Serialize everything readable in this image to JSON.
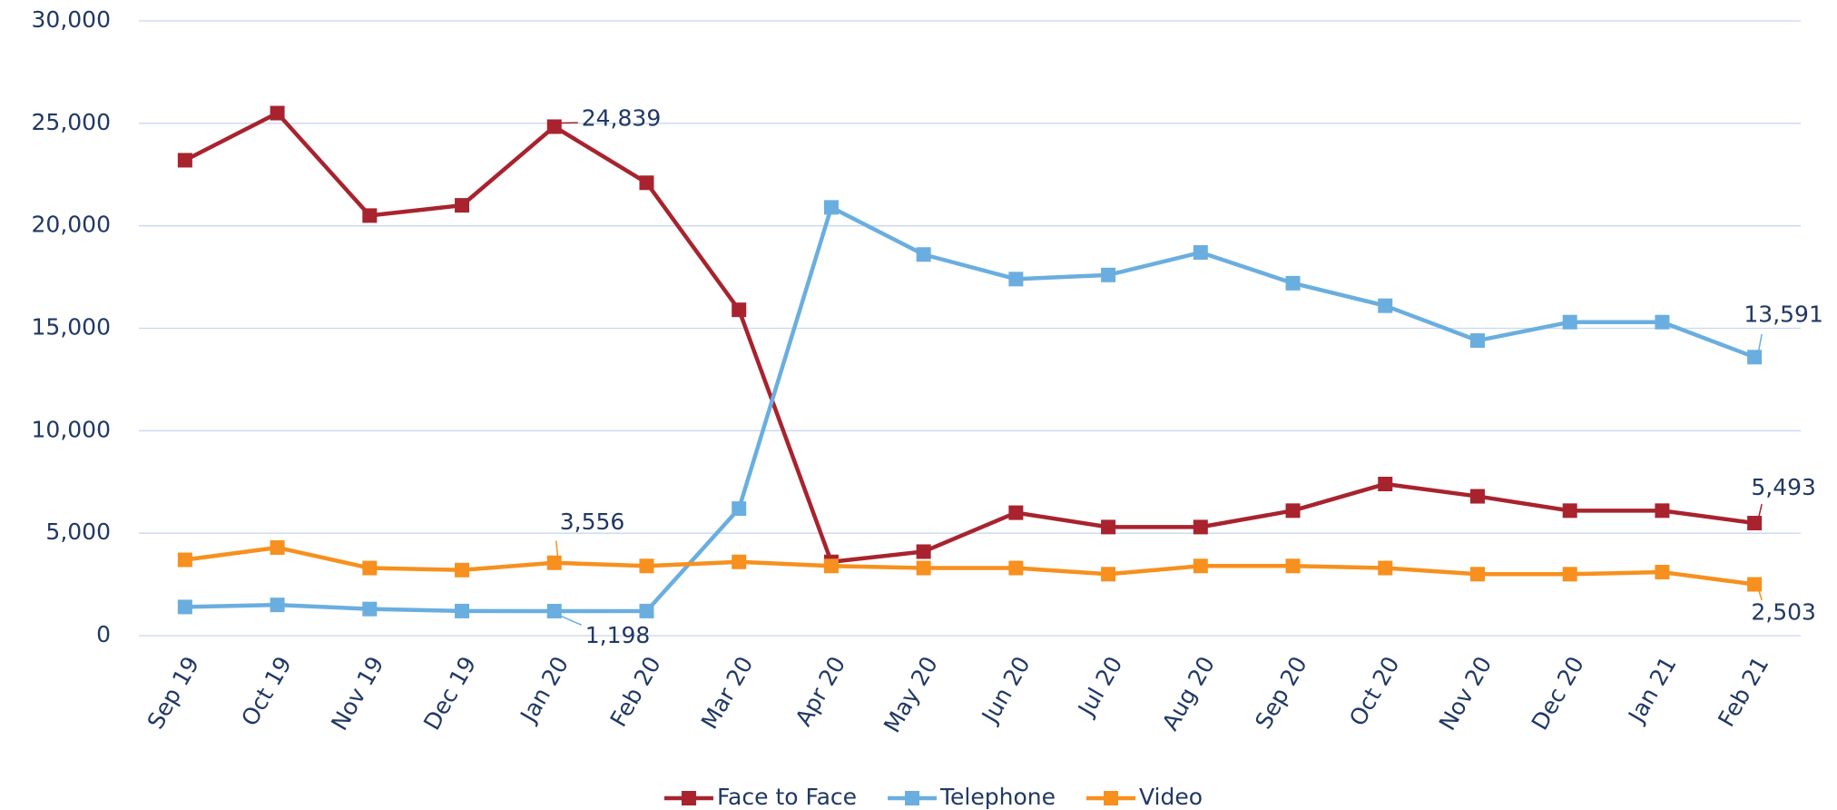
{
  "chart_data": {
    "type": "line",
    "categories": [
      "Sep 19",
      "Oct 19",
      "Nov 19",
      "Dec 19",
      "Jan 20",
      "Feb 20",
      "Mar 20",
      "Apr 20",
      "May 20",
      "Jun 20",
      "Jul 20",
      "Aug 20",
      "Sep 20",
      "Oct 20",
      "Nov 20",
      "Dec 20",
      "Jan 21",
      "Feb 21"
    ],
    "series": [
      {
        "name": "Face to Face",
        "color": "#a8232e",
        "values": [
          23200,
          25500,
          20500,
          21000,
          24839,
          22100,
          15900,
          3600,
          4100,
          6000,
          5300,
          5300,
          6100,
          7400,
          6800,
          6100,
          6100,
          5493
        ],
        "value_labels": [
          null,
          null,
          null,
          null,
          "24,839",
          null,
          null,
          null,
          null,
          null,
          null,
          null,
          null,
          null,
          null,
          null,
          null,
          "5,493"
        ]
      },
      {
        "name": "Telephone",
        "color": "#6aaee0",
        "values": [
          1400,
          1500,
          1300,
          1200,
          1198,
          1200,
          6200,
          20900,
          18600,
          17400,
          17600,
          18700,
          17200,
          16100,
          14400,
          15300,
          15300,
          13591
        ],
        "value_labels": [
          null,
          null,
          null,
          null,
          "1,198",
          null,
          null,
          null,
          null,
          null,
          null,
          null,
          null,
          null,
          null,
          null,
          null,
          "13,591"
        ]
      },
      {
        "name": "Video",
        "color": "#f7901e",
        "values": [
          3700,
          4300,
          3300,
          3200,
          3556,
          3400,
          3600,
          3400,
          3300,
          3300,
          3000,
          3400,
          3400,
          3300,
          3000,
          3000,
          3100,
          2503
        ],
        "value_labels": [
          null,
          null,
          null,
          null,
          "3,556",
          null,
          null,
          null,
          null,
          null,
          null,
          null,
          null,
          null,
          null,
          null,
          null,
          "2,503"
        ]
      }
    ],
    "ylim": [
      0,
      30000
    ],
    "yticks": [
      {
        "value": 0,
        "label": "0"
      },
      {
        "value": 5000,
        "label": "5,000"
      },
      {
        "value": 10000,
        "label": "10,000"
      },
      {
        "value": 15000,
        "label": "15,000"
      },
      {
        "value": 20000,
        "label": "20,000"
      },
      {
        "value": 25000,
        "label": "25,000"
      },
      {
        "value": 30000,
        "label": "30,000"
      }
    ],
    "grid": true,
    "legend": "bottom"
  }
}
